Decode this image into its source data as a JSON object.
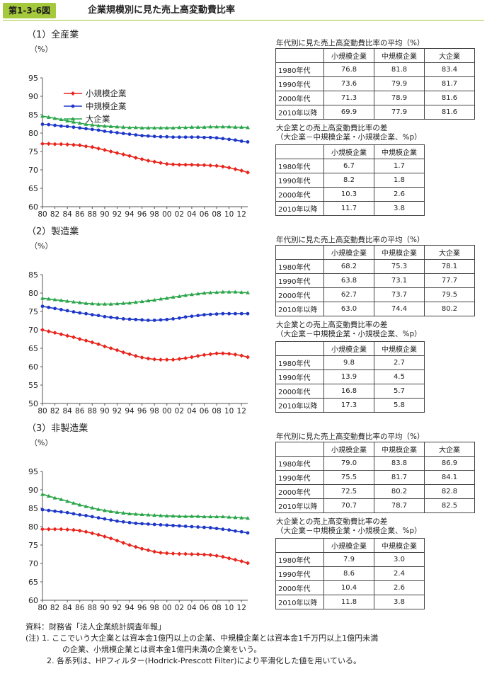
{
  "figure": {
    "label": "第1-3-6図",
    "title": "企業規模別に見た売上高変動費比率"
  },
  "colors": {
    "small": "#e8251c",
    "medium": "#1d37c8",
    "large": "#2aa64a",
    "accent": "#a5c93d"
  },
  "common": {
    "legend": [
      "小規模企業",
      "中規模企業",
      "大企業"
    ],
    "yunit": "（%）",
    "xunit": "（年度）",
    "xticks": [
      "80",
      "82",
      "84",
      "86",
      "88",
      "90",
      "92",
      "94",
      "96",
      "98",
      "00",
      "02",
      "04",
      "06",
      "08",
      "10",
      "12"
    ],
    "avg_caption": "年代別に見た売上高変動費比率の平均（%）",
    "avg_headers": [
      "小規模企業",
      "中規模企業",
      "大企業"
    ],
    "diff_caption1": "大企業との売上高変動費比率の差",
    "diff_caption2": "（大企業－中規模企業・小規模企業、%p）",
    "diff_headers": [
      "小規模企業",
      "中規模企業"
    ],
    "row_labels": [
      "1980年代",
      "1990年代",
      "2000年代",
      "2010年以降"
    ]
  },
  "sections": [
    {
      "title": "（1）全産業",
      "avg": [
        [
          "76.8",
          "81.8",
          "83.4"
        ],
        [
          "73.6",
          "79.9",
          "81.7"
        ],
        [
          "71.3",
          "78.9",
          "81.6"
        ],
        [
          "69.9",
          "77.9",
          "81.6"
        ]
      ],
      "diff": [
        [
          "6.7",
          "1.7"
        ],
        [
          "8.2",
          "1.8"
        ],
        [
          "10.3",
          "2.6"
        ],
        [
          "11.7",
          "3.8"
        ]
      ]
    },
    {
      "title": "（2）製造業",
      "avg": [
        [
          "68.2",
          "75.3",
          "78.1"
        ],
        [
          "63.8",
          "73.1",
          "77.7"
        ],
        [
          "62.7",
          "73.7",
          "79.5"
        ],
        [
          "63.0",
          "74.4",
          "80.2"
        ]
      ],
      "diff": [
        [
          "9.8",
          "2.7"
        ],
        [
          "13.9",
          "4.5"
        ],
        [
          "16.8",
          "5.7"
        ],
        [
          "17.3",
          "5.8"
        ]
      ]
    },
    {
      "title": "（3）非製造業",
      "avg": [
        [
          "79.0",
          "83.8",
          "86.9"
        ],
        [
          "75.5",
          "81.7",
          "84.1"
        ],
        [
          "72.5",
          "80.2",
          "82.8"
        ],
        [
          "70.7",
          "78.7",
          "82.5"
        ]
      ],
      "diff": [
        [
          "7.9",
          "3.0"
        ],
        [
          "8.6",
          "2.4"
        ],
        [
          "10.4",
          "2.6"
        ],
        [
          "11.8",
          "3.8"
        ]
      ]
    }
  ],
  "chart_data": [
    {
      "type": "line",
      "xlabel": "（年度）",
      "ylabel": "（%）",
      "ylim": [
        60,
        95
      ],
      "yticks": [
        60,
        65,
        70,
        75,
        80,
        85,
        90,
        95
      ],
      "x": [
        1980,
        1981,
        1982,
        1983,
        1984,
        1985,
        1986,
        1987,
        1988,
        1989,
        1990,
        1991,
        1992,
        1993,
        1994,
        1995,
        1996,
        1997,
        1998,
        1999,
        2000,
        2001,
        2002,
        2003,
        2004,
        2005,
        2006,
        2007,
        2008,
        2009,
        2010,
        2011,
        2012,
        2013
      ],
      "series": [
        {
          "name": "小規模企業",
          "values": [
            77.1,
            77.1,
            77.0,
            77.0,
            76.9,
            76.8,
            76.7,
            76.4,
            76.2,
            75.8,
            75.4,
            75.0,
            74.6,
            74.2,
            73.8,
            73.3,
            72.9,
            72.5,
            72.2,
            71.9,
            71.6,
            71.5,
            71.4,
            71.4,
            71.4,
            71.3,
            71.3,
            71.2,
            71.1,
            70.9,
            70.6,
            70.2,
            69.8,
            69.3
          ]
        },
        {
          "name": "中規模企業",
          "values": [
            82.4,
            82.3,
            82.1,
            81.9,
            81.8,
            81.6,
            81.4,
            81.2,
            81.0,
            80.8,
            80.5,
            80.3,
            80.1,
            79.9,
            79.7,
            79.5,
            79.3,
            79.2,
            79.1,
            79.0,
            79.0,
            78.9,
            78.9,
            78.9,
            78.9,
            78.9,
            78.8,
            78.8,
            78.7,
            78.5,
            78.3,
            78.1,
            77.8,
            77.6
          ]
        },
        {
          "name": "大企業",
          "values": [
            84.6,
            84.3,
            84.0,
            83.7,
            83.3,
            83.0,
            82.7,
            82.4,
            82.2,
            82.0,
            81.9,
            81.8,
            81.7,
            81.6,
            81.5,
            81.5,
            81.4,
            81.4,
            81.4,
            81.4,
            81.4,
            81.4,
            81.5,
            81.5,
            81.6,
            81.6,
            81.6,
            81.7,
            81.7,
            81.7,
            81.7,
            81.6,
            81.6,
            81.5
          ]
        }
      ]
    },
    {
      "type": "line",
      "xlabel": "（年度）",
      "ylabel": "（%）",
      "ylim": [
        50,
        85
      ],
      "yticks": [
        50,
        55,
        60,
        65,
        70,
        75,
        80,
        85
      ],
      "x": [
        1980,
        1981,
        1982,
        1983,
        1984,
        1985,
        1986,
        1987,
        1988,
        1989,
        1990,
        1991,
        1992,
        1993,
        1994,
        1995,
        1996,
        1997,
        1998,
        1999,
        2000,
        2001,
        2002,
        2003,
        2004,
        2005,
        2006,
        2007,
        2008,
        2009,
        2010,
        2011,
        2012,
        2013
      ],
      "series": [
        {
          "name": "小規模企業",
          "values": [
            70.0,
            69.6,
            69.2,
            68.8,
            68.4,
            68.0,
            67.5,
            67.1,
            66.6,
            66.1,
            65.5,
            65.0,
            64.5,
            63.9,
            63.4,
            62.9,
            62.5,
            62.2,
            62.0,
            61.9,
            61.9,
            61.9,
            62.1,
            62.3,
            62.6,
            62.9,
            63.2,
            63.4,
            63.6,
            63.6,
            63.5,
            63.3,
            63.0,
            62.6
          ]
        },
        {
          "name": "中規模企業",
          "values": [
            76.4,
            76.1,
            75.8,
            75.5,
            75.2,
            74.9,
            74.6,
            74.4,
            74.1,
            73.9,
            73.6,
            73.4,
            73.2,
            73.0,
            72.9,
            72.8,
            72.7,
            72.6,
            72.6,
            72.7,
            72.8,
            73.0,
            73.2,
            73.5,
            73.7,
            73.9,
            74.1,
            74.2,
            74.3,
            74.4,
            74.4,
            74.4,
            74.4,
            74.4
          ]
        },
        {
          "name": "大企業",
          "values": [
            78.6,
            78.4,
            78.2,
            78.0,
            77.8,
            77.6,
            77.4,
            77.2,
            77.1,
            77.0,
            77.0,
            77.0,
            77.1,
            77.2,
            77.3,
            77.5,
            77.7,
            77.9,
            78.1,
            78.4,
            78.6,
            78.9,
            79.1,
            79.4,
            79.6,
            79.8,
            80.0,
            80.1,
            80.2,
            80.3,
            80.3,
            80.3,
            80.2,
            80.1
          ]
        }
      ]
    },
    {
      "type": "line",
      "xlabel": "（年度）",
      "ylabel": "（%）",
      "ylim": [
        60,
        95
      ],
      "yticks": [
        60,
        65,
        70,
        75,
        80,
        85,
        90,
        95
      ],
      "x": [
        1980,
        1981,
        1982,
        1983,
        1984,
        1985,
        1986,
        1987,
        1988,
        1989,
        1990,
        1991,
        1992,
        1993,
        1994,
        1995,
        1996,
        1997,
        1998,
        1999,
        2000,
        2001,
        2002,
        2003,
        2004,
        2005,
        2006,
        2007,
        2008,
        2009,
        2010,
        2011,
        2012,
        2013
      ],
      "series": [
        {
          "name": "小規模企業",
          "values": [
            79.3,
            79.3,
            79.3,
            79.3,
            79.2,
            79.1,
            78.9,
            78.6,
            78.2,
            77.8,
            77.3,
            76.8,
            76.2,
            75.6,
            75.0,
            74.5,
            74.0,
            73.6,
            73.2,
            72.9,
            72.8,
            72.7,
            72.6,
            72.6,
            72.5,
            72.5,
            72.4,
            72.3,
            72.1,
            71.8,
            71.4,
            71.0,
            70.6,
            70.1
          ]
        },
        {
          "name": "中規模企業",
          "values": [
            84.6,
            84.4,
            84.2,
            84.0,
            83.8,
            83.5,
            83.2,
            83.0,
            82.7,
            82.4,
            82.1,
            81.8,
            81.5,
            81.3,
            81.1,
            80.9,
            80.8,
            80.7,
            80.6,
            80.5,
            80.4,
            80.3,
            80.2,
            80.1,
            80.0,
            79.9,
            79.8,
            79.7,
            79.5,
            79.3,
            79.1,
            78.8,
            78.6,
            78.3
          ]
        },
        {
          "name": "大企業",
          "values": [
            88.8,
            88.3,
            87.8,
            87.4,
            86.9,
            86.4,
            85.9,
            85.5,
            85.1,
            84.7,
            84.4,
            84.1,
            83.9,
            83.7,
            83.5,
            83.4,
            83.3,
            83.2,
            83.1,
            83.0,
            82.9,
            82.9,
            82.8,
            82.8,
            82.8,
            82.8,
            82.7,
            82.7,
            82.7,
            82.7,
            82.6,
            82.5,
            82.4,
            82.3
          ]
        }
      ]
    }
  ],
  "notes": {
    "source": "資料：財務省「法人企業統計調査年報」",
    "note1a": "(注) 1. ここでいう大企業とは資本金1億円以上の企業、中規模企業とは資本金1千万円以上1億円未満",
    "note1b": "の企業、小規模企業とは資本金1億円未満の企業をいう。",
    "note2": "2. 各系列は、HPフィルター(Hodrick-Prescott Filter)により平滑化した値を用いている。"
  }
}
